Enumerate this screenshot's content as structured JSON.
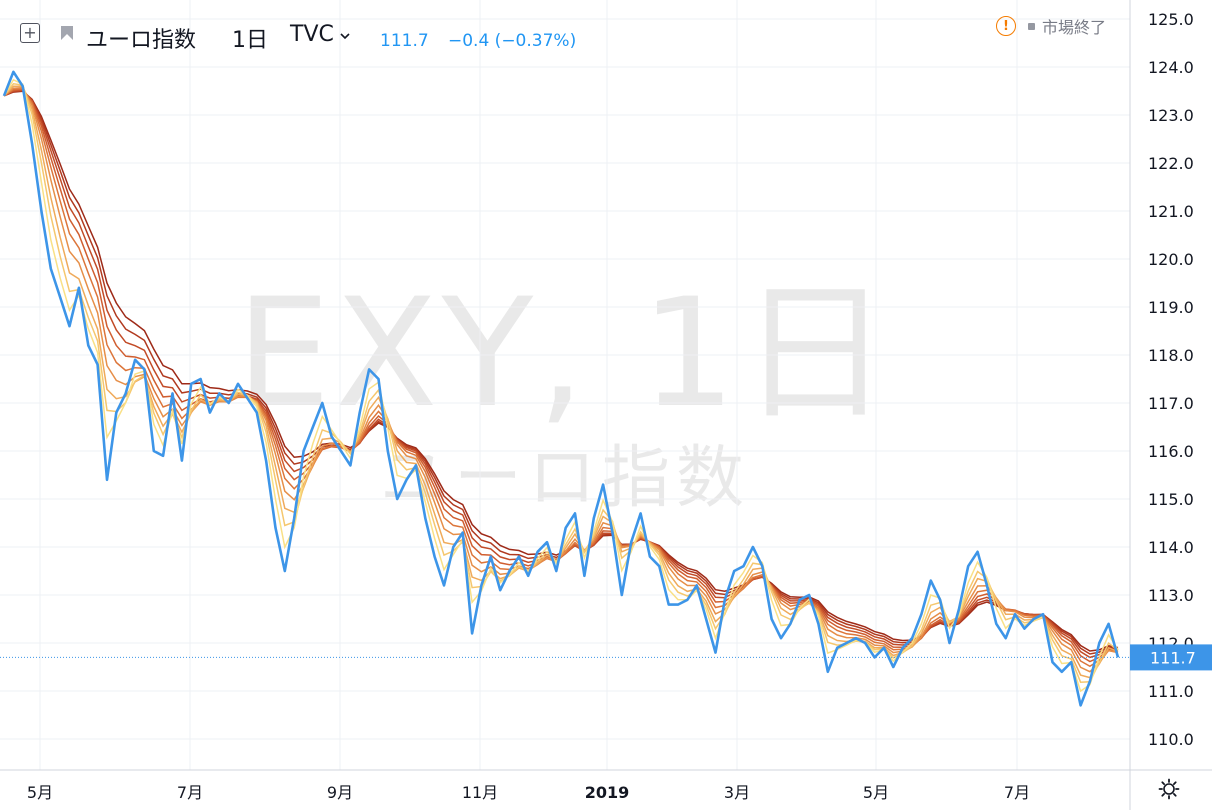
{
  "header": {
    "symbol": "ユーロ指数",
    "interval": "1日",
    "exchange": "TVC",
    "price": "111.7",
    "change": "−0.4 (−0.37%)",
    "status": "市場終了",
    "alert_glyph": "!",
    "add_glyph": "+"
  },
  "watermark": {
    "main": "EXY, 1日",
    "sub": "ユーロ指数"
  },
  "colors": {
    "price_line": "#3d95e8",
    "grid": "#eef0f4",
    "axis_text": "#131722",
    "ribbon": [
      "#9e2a18",
      "#b13a1f",
      "#c24b27",
      "#d05e30",
      "#dc753a",
      "#e68e48",
      "#efaa5a",
      "#f5c76e",
      "#f9e086"
    ]
  },
  "chart_data": {
    "type": "line",
    "title": "",
    "xlabel": "",
    "ylabel": "",
    "ylim": [
      109.5,
      125.3
    ],
    "y_ticks": [
      "125.0",
      "124.0",
      "123.0",
      "122.0",
      "121.0",
      "120.0",
      "119.0",
      "118.0",
      "117.0",
      "116.0",
      "115.0",
      "114.0",
      "113.0",
      "112.0",
      "111.0",
      "110.0"
    ],
    "x_ticks": [
      "5月",
      "7月",
      "9月",
      "11月",
      "2019",
      "3月",
      "5月",
      "7月"
    ],
    "current_price_label": "111.7",
    "current_price": 111.7,
    "grid": true,
    "series": [
      {
        "values": [
          123.4,
          123.9,
          123.6,
          122.4,
          121.0,
          119.8,
          119.2,
          118.6,
          119.4,
          118.2,
          117.8,
          115.4,
          116.8,
          117.2,
          117.9,
          117.7,
          116.0,
          115.9,
          117.2,
          115.8,
          117.4,
          117.5,
          116.8,
          117.2,
          117.0,
          117.4,
          117.1,
          116.8,
          115.8,
          114.4,
          113.5,
          114.6,
          116.0,
          116.5,
          117.0,
          116.3,
          116.0,
          115.7,
          116.8,
          117.7,
          117.5,
          116.0,
          115.0,
          115.4,
          115.7,
          114.6,
          113.8,
          113.2,
          114.0,
          114.3,
          112.2,
          113.2,
          113.8,
          113.1,
          113.5,
          113.8,
          113.4,
          113.9,
          114.1,
          113.5,
          114.4,
          114.7,
          113.4,
          114.6,
          115.3,
          114.3,
          113.0,
          114.1,
          114.7,
          113.8,
          113.6,
          112.8,
          112.8,
          112.9,
          113.2,
          112.5,
          111.8,
          112.9,
          113.5,
          113.6,
          114.0,
          113.6,
          112.5,
          112.1,
          112.4,
          112.9,
          113.0,
          112.4,
          111.4,
          111.9,
          112.0,
          112.1,
          112.0,
          111.7,
          111.9,
          111.5,
          111.9,
          112.1,
          112.6,
          113.3,
          112.9,
          112.0,
          112.7,
          113.6,
          113.9,
          113.2,
          112.4,
          112.1,
          112.6,
          112.3,
          112.5,
          112.6,
          111.6,
          111.4,
          111.6,
          110.7,
          111.2,
          112.0,
          112.4,
          111.7
        ]
      }
    ]
  }
}
